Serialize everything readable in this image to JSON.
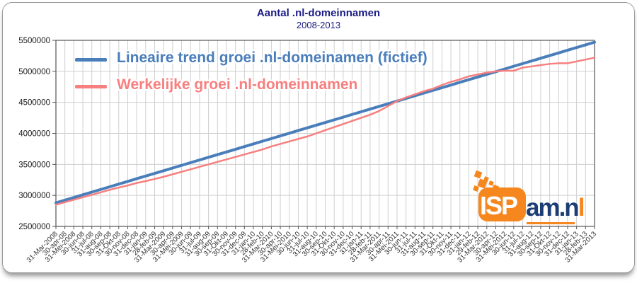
{
  "header": {
    "title": "Aantal .nl-domeinnamen",
    "subtitle": "2008-2013",
    "color": "#1c1c86"
  },
  "legend": {
    "items": [
      {
        "label": "Lineaire trend groei .nl-domeinamen (fictief)",
        "color": "#4a7ebb"
      },
      {
        "label": "Werkelijke groei .nl-domeinnamen",
        "color": "#f77f7f"
      }
    ]
  },
  "y_axis": {
    "ticks": [
      "5500000",
      "5000000",
      "4500000",
      "4000000",
      "3500000",
      "3000000",
      "2500000"
    ]
  },
  "logo": {
    "isp": "ISP",
    "suffix_dark": "am.n",
    "suffix_orange": "l",
    "orange": "#f6871f",
    "navy": "#1c3e74"
  },
  "chart_data": {
    "type": "line",
    "title": "Aantal .nl-domeinnamen",
    "subtitle": "2008-2013",
    "xlabel": "",
    "ylabel": "",
    "ylim": [
      2500000,
      5500000
    ],
    "y_step": 500000,
    "grid": true,
    "legend_position": "top-left-inside",
    "categories": [
      "31-Mar-2008",
      "30-apr-08",
      "31-Mei-2008",
      "30-jun-08",
      "31-jul-08",
      "31-aug-08",
      "30-sep-08",
      "31-Okt-08",
      "30-nov-08",
      "31-dec-08",
      "31-jan-09",
      "28-feb-09",
      "31-Mar-2009",
      "30-apr-09",
      "31-Mei-2009",
      "30-jun-09",
      "31-jul-09",
      "31-aug-09",
      "30-sep-09",
      "31-Okt-09",
      "30-nov-09",
      "31-dec-09",
      "31-jan-10",
      "28-feb-10",
      "31-Mar-2010",
      "30-apr-10",
      "31-Mei-2010",
      "30-jun-10",
      "31-jul-10",
      "31-aug-10",
      "30-sep-10",
      "31-Okt-10",
      "30-nov-10",
      "31-dec-10",
      "31-jan-11",
      "28-feb-11",
      "31-Mar-2011",
      "30-apr-11",
      "31-Mei-2011",
      "30-jun-11",
      "31-jul-11",
      "31-aug-11",
      "30-sep-11",
      "31-Okt-11",
      "30-nov-11",
      "31-dec-11",
      "31-jan-12",
      "29-feb-12",
      "31-Mar-2012",
      "30-apr-12",
      "31-Mei-2012",
      "30-jun-12",
      "31-jul-12",
      "31-aug-12",
      "30-sep-12",
      "31-Okt-12",
      "30-nov-12",
      "31-dec-12",
      "31-jan-13",
      "28-feb-13",
      "31-Mar-2013"
    ],
    "series": [
      {
        "name": "Lineaire trend groei .nl-domeinamen (fictief)",
        "color": "#4a7ebb",
        "width": 4,
        "values": [
          2880000,
          2923000,
          2966000,
          3010000,
          3053000,
          3096000,
          3139000,
          3182000,
          3225000,
          3269000,
          3312000,
          3355000,
          3398000,
          3441000,
          3484000,
          3528000,
          3571000,
          3614000,
          3657000,
          3700000,
          3743000,
          3787000,
          3830000,
          3873000,
          3916000,
          3959000,
          4002000,
          4046000,
          4089000,
          4132000,
          4175000,
          4218000,
          4261000,
          4305000,
          4348000,
          4391000,
          4434000,
          4477000,
          4520000,
          4564000,
          4607000,
          4650000,
          4693000,
          4736000,
          4779000,
          4823000,
          4866000,
          4909000,
          4952000,
          4995000,
          5038000,
          5082000,
          5125000,
          5168000,
          5211000,
          5254000,
          5297000,
          5341000,
          5384000,
          5427000,
          5470000
        ]
      },
      {
        "name": "Werkelijke groei .nl-domeinnamen",
        "color": "#f77f7f",
        "width": 2.5,
        "values": [
          2850000,
          2890000,
          2930000,
          2970000,
          3010000,
          3050000,
          3090000,
          3125000,
          3160000,
          3200000,
          3230000,
          3265000,
          3300000,
          3340000,
          3380000,
          3420000,
          3460000,
          3500000,
          3540000,
          3580000,
          3620000,
          3660000,
          3700000,
          3740000,
          3790000,
          3830000,
          3870000,
          3910000,
          3950000,
          4000000,
          4050000,
          4100000,
          4150000,
          4200000,
          4250000,
          4300000,
          4360000,
          4440000,
          4520000,
          4580000,
          4630000,
          4680000,
          4720000,
          4780000,
          4830000,
          4870000,
          4920000,
          4950000,
          4980000,
          5000000,
          5010000,
          5010000,
          5060000,
          5080000,
          5100000,
          5120000,
          5130000,
          5130000,
          5160000,
          5190000,
          5220000
        ]
      }
    ]
  }
}
